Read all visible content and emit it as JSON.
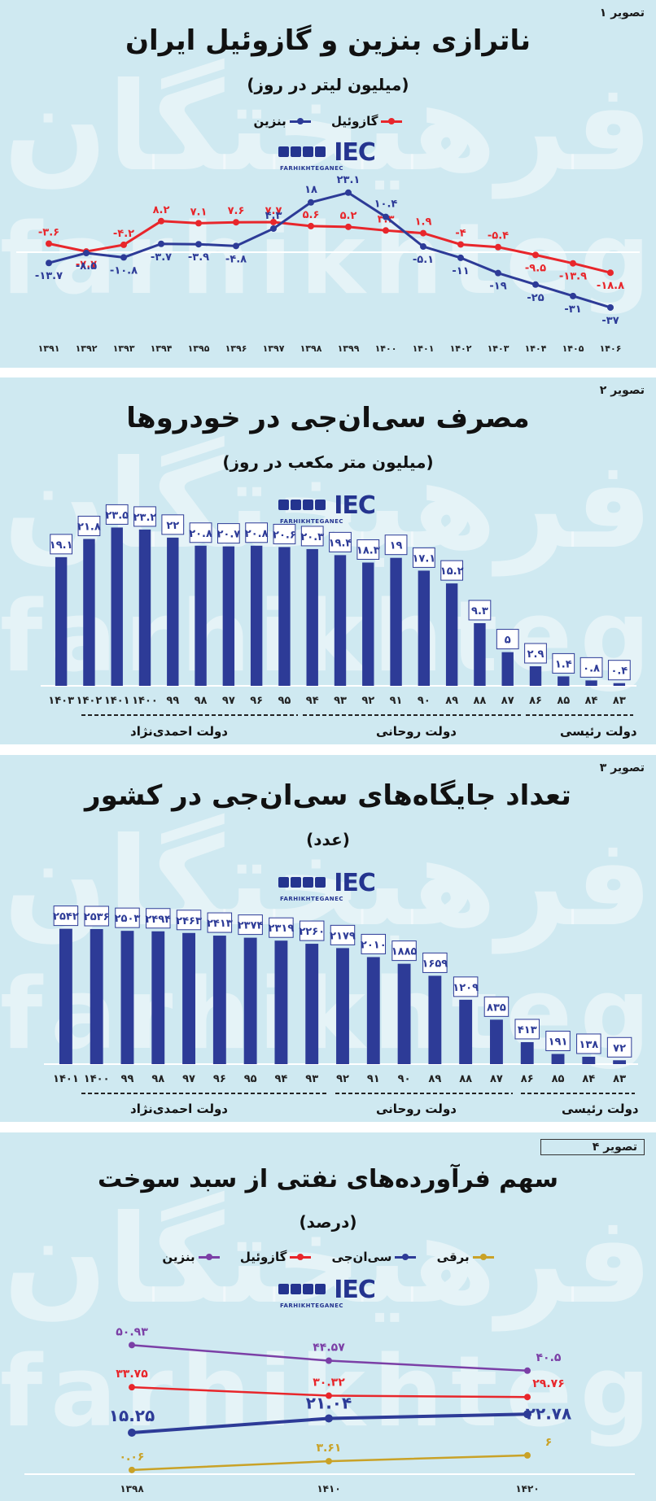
{
  "panel1": {
    "tag": "تصویر ۱",
    "title": "ناترازی بنزین و گازوئیل ایران",
    "subtitle": "(میلیون لیتر در روز)",
    "legend": [
      {
        "name": "گازوئیل",
        "color": "#e8262b"
      },
      {
        "name": "بنزین",
        "color": "#2d3b97"
      }
    ]
  },
  "panel2": {
    "tag": "تصویر ۲",
    "title": "مصرف سی‌ان‌جی در خودروها",
    "subtitle": "(میلیون متر مکعب در روز)",
    "gov": [
      "دولت احمدی‌نژاد",
      "دولت روحانی",
      "دولت رئیسی"
    ]
  },
  "panel3": {
    "tag": "تصویر ۳",
    "title": "تعداد جایگاه‌های سی‌ان‌جی در کشور",
    "subtitle": "(عدد)",
    "gov": [
      "دولت احمدی‌نژاد",
      "دولت روحانی",
      "دولت رئیسی"
    ]
  },
  "panel4": {
    "tag": "تصویر ۴",
    "title": "سهم فرآورده‌های نفتی از سبد سوخت",
    "subtitle": "(درصد)",
    "legend": [
      {
        "name": "برقی",
        "color": "#c9a227"
      },
      {
        "name": "سی‌ان‌جی",
        "color": "#2d3b97"
      },
      {
        "name": "گازوئیل",
        "color": "#e8262b"
      },
      {
        "name": "بنزین",
        "color": "#7b3fa6"
      }
    ]
  },
  "logo": {
    "text": "IEC",
    "sub": "FARHIKHTEGANEC"
  },
  "watermark": {
    "fa": "فرهیختگان",
    "en": "farhikhtegan"
  },
  "chart_data": [
    {
      "type": "line",
      "x": [
        "۱۳۹۱",
        "۱۳۹۲",
        "۱۳۹۳",
        "۱۳۹۴",
        "۱۳۹۵",
        "۱۳۹۶",
        "۱۳۹۷",
        "۱۳۹۸",
        "۱۳۹۹",
        "۱۴۰۰",
        "۱۴۰۱",
        "۱۴۰۲",
        "۱۴۰۳",
        "۱۴۰۴",
        "۱۴۰۵",
        "۱۴۰۶"
      ],
      "series": [
        {
          "name": "گازوئیل",
          "color": "#e8262b",
          "values": [
            -3.6,
            -7.7,
            -4.2,
            8.2,
            7.1,
            7.6,
            7.7,
            5.6,
            5.2,
            3.3,
            1.9,
            -4,
            -5.4,
            -9.5,
            -13.9,
            -18.8
          ],
          "labels": [
            "-۳.۶",
            "-۷.۷",
            "-۴.۲",
            "۸.۲",
            "۷.۱",
            "۷.۶",
            "۷.۷",
            "۵.۶",
            "۵.۲",
            "۳.۳",
            "۱.۹",
            "-۴",
            "-۵.۴",
            "-۹.۵",
            "-۱۳.۹",
            "-۱۸.۸"
          ]
        },
        {
          "name": "بنزین",
          "color": "#2d3b97",
          "values": [
            -13.7,
            -8.5,
            -10.8,
            -3.7,
            -3.9,
            -4.8,
            4.3,
            18,
            23.1,
            10.4,
            -5.1,
            -11,
            -19,
            -25,
            -31,
            -37
          ],
          "labels": [
            "-۱۳.۷",
            "-۸.۵",
            "-۱۰.۸",
            "-۳.۷",
            "-۳.۹",
            "-۴.۸",
            "۴.۳",
            "۱۸",
            "۲۳.۱",
            "۱۰.۴",
            "-۵.۱",
            "-۱۱",
            "-۱۹",
            "-۲۵",
            "-۳۱",
            "-۳۷"
          ]
        }
      ],
      "ylim": [
        -40,
        26
      ]
    },
    {
      "type": "bar",
      "categories": [
        "۸۳",
        "۸۴",
        "۸۵",
        "۸۶",
        "۸۷",
        "۸۸",
        "۸۹",
        "۹۰",
        "۹۱",
        "۹۲",
        "۹۳",
        "۹۴",
        "۹۵",
        "۹۶",
        "۹۷",
        "۹۸",
        "۹۹",
        "۱۴۰۰",
        "۱۴۰۱",
        "۱۴۰۲",
        "۱۴۰۳"
      ],
      "values": [
        0.4,
        0.8,
        1.4,
        2.9,
        5,
        9.3,
        15.2,
        17.1,
        19,
        18.3,
        19.4,
        20.3,
        20.6,
        20.8,
        20.7,
        20.8,
        22,
        23.2,
        23.5,
        21.8,
        19.1
      ],
      "labels": [
        "۰.۴",
        "۰.۸",
        "۱.۴",
        "۲.۹",
        "۵",
        "۹.۳",
        "۱۵.۲",
        "۱۷.۱",
        "۱۹",
        "۱۸.۳",
        "۱۹.۴",
        "۲۰.۳",
        "۲۰.۶",
        "۲۰.۸",
        "۲۰.۷",
        "۲۰.۸",
        "۲۲",
        "۲۳.۲",
        "۲۳.۵",
        "۲۱.۸",
        "۱۹.۱"
      ],
      "color": "#2d3b97",
      "ylim": [
        0,
        25
      ]
    },
    {
      "type": "bar",
      "categories": [
        "۸۳",
        "۸۴",
        "۸۵",
        "۸۶",
        "۸۷",
        "۸۸",
        "۸۹",
        "۹۰",
        "۹۱",
        "۹۲",
        "۹۳",
        "۹۴",
        "۹۵",
        "۹۶",
        "۹۷",
        "۹۸",
        "۹۹",
        "۱۴۰۰",
        "۱۴۰۱"
      ],
      "values": [
        72,
        138,
        191,
        413,
        835,
        1209,
        1659,
        1885,
        2010,
        2179,
        2260,
        2319,
        2374,
        2413,
        2463,
        2494,
        2503,
        2536,
        2542
      ],
      "labels": [
        "۷۲",
        "۱۳۸",
        "۱۹۱",
        "۴۱۳",
        "۸۳۵",
        "۱۲۰۹",
        "۱۶۵۹",
        "۱۸۸۵",
        "۲۰۱۰",
        "۲۱۷۹",
        "۲۲۶۰",
        "۲۳۱۹",
        "۲۳۷۴",
        "۲۴۱۳",
        "۲۴۶۳",
        "۲۴۹۴",
        "۲۵۰۳",
        "۲۵۳۶",
        "۲۵۴۲"
      ],
      "color": "#2d3b97",
      "ylim": [
        0,
        2750
      ]
    },
    {
      "type": "line",
      "x": [
        "۱۳۹۸",
        "۱۴۱۰",
        "۱۴۲۰"
      ],
      "series": [
        {
          "name": "بنزین",
          "color": "#7b3fa6",
          "values": [
            50.93,
            44.57,
            40.5
          ],
          "labels": [
            "۵۰.۹۳",
            "۴۴.۵۷",
            "۴۰.۵"
          ]
        },
        {
          "name": "گازوئیل",
          "color": "#e8262b",
          "values": [
            33.75,
            30.32,
            29.76
          ],
          "labels": [
            "۳۳.۷۵",
            "۳۰.۳۲",
            "۲۹.۷۶"
          ]
        },
        {
          "name": "سی‌ان‌جی",
          "color": "#2d3b97",
          "values": [
            15.25,
            21.04,
            22.78
          ],
          "labels": [
            "۱۵.۲۵",
            "۲۱.۰۴",
            "۲۲.۷۸"
          ]
        },
        {
          "name": "برقی",
          "color": "#c9a227",
          "values": [
            0.06,
            3.61,
            6
          ],
          "labels": [
            "۰.۰۶",
            "۳.۶۱",
            "۶"
          ]
        }
      ],
      "ylim": [
        0,
        58
      ]
    }
  ]
}
